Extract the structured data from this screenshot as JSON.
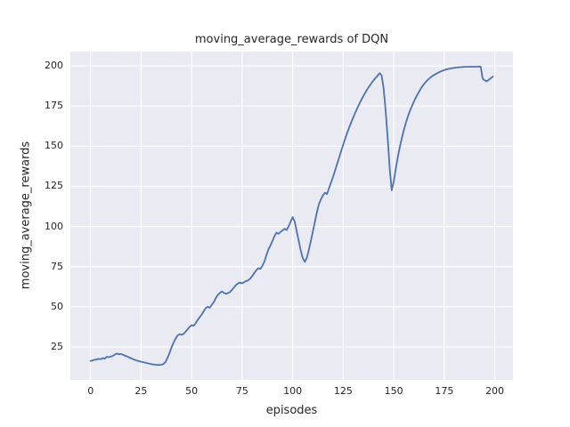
{
  "chart_data": {
    "type": "line",
    "title": "moving_average_rewards of DQN",
    "xlabel": "episodes",
    "ylabel": "moving_average_rewards",
    "x_ticks": [
      0,
      25,
      50,
      75,
      100,
      125,
      150,
      175,
      200
    ],
    "y_ticks": [
      25,
      50,
      75,
      100,
      125,
      150,
      175,
      200
    ],
    "xlim": [
      -10,
      209
    ],
    "ylim": [
      4.5,
      208.9
    ],
    "grid": true,
    "legend_position": "none",
    "colors": {
      "line": "#4C72B0",
      "axes_background": "#EAEAF2",
      "grid": "#FFFFFF",
      "figure_background": "#FFFFFF",
      "text": "#262626"
    },
    "series": [
      {
        "name": "moving_average_rewards",
        "points": [
          [
            0,
            16.3
          ],
          [
            1,
            16.6
          ],
          [
            2,
            17.0
          ],
          [
            3,
            17.2
          ],
          [
            4,
            17.6
          ],
          [
            5,
            17.4
          ],
          [
            6,
            18.0
          ],
          [
            7,
            17.7
          ],
          [
            8,
            18.9
          ],
          [
            9,
            18.6
          ],
          [
            10,
            19.0
          ],
          [
            11,
            19.4
          ],
          [
            12,
            20.3
          ],
          [
            13,
            20.9
          ],
          [
            14,
            20.4
          ],
          [
            15,
            20.7
          ],
          [
            16,
            20.1
          ],
          [
            17,
            19.6
          ],
          [
            18,
            19.1
          ],
          [
            19,
            18.5
          ],
          [
            20,
            18.0
          ],
          [
            21,
            17.4
          ],
          [
            22,
            16.9
          ],
          [
            23,
            16.5
          ],
          [
            24,
            16.1
          ],
          [
            25,
            15.8
          ],
          [
            26,
            15.5
          ],
          [
            27,
            15.2
          ],
          [
            28,
            14.9
          ],
          [
            29,
            14.6
          ],
          [
            30,
            14.3
          ],
          [
            31,
            14.1
          ],
          [
            32,
            13.9
          ],
          [
            33,
            13.8
          ],
          [
            34,
            13.8
          ],
          [
            35,
            13.9
          ],
          [
            36,
            14.3
          ],
          [
            37,
            15.5
          ],
          [
            38,
            18.0
          ],
          [
            39,
            21.0
          ],
          [
            40,
            24.5
          ],
          [
            41,
            27.5
          ],
          [
            42,
            30.0
          ],
          [
            43,
            32.0
          ],
          [
            44,
            33.0
          ],
          [
            45,
            32.5
          ],
          [
            46,
            33.2
          ],
          [
            47,
            34.5
          ],
          [
            48,
            36.0
          ],
          [
            49,
            37.5
          ],
          [
            50,
            38.5
          ],
          [
            51,
            38.2
          ],
          [
            52,
            39.8
          ],
          [
            53,
            41.8
          ],
          [
            54,
            43.5
          ],
          [
            55,
            45.2
          ],
          [
            56,
            47.2
          ],
          [
            57,
            49.3
          ],
          [
            58,
            50.0
          ],
          [
            59,
            49.4
          ],
          [
            60,
            51.3
          ],
          [
            61,
            53.0
          ],
          [
            62,
            55.5
          ],
          [
            63,
            57.5
          ],
          [
            64,
            58.6
          ],
          [
            65,
            59.6
          ],
          [
            66,
            58.6
          ],
          [
            67,
            58.1
          ],
          [
            68,
            58.5
          ],
          [
            69,
            59.2
          ],
          [
            70,
            60.6
          ],
          [
            71,
            62.1
          ],
          [
            72,
            63.6
          ],
          [
            73,
            64.6
          ],
          [
            74,
            65.1
          ],
          [
            75,
            64.6
          ],
          [
            76,
            65.4
          ],
          [
            77,
            66.0
          ],
          [
            78,
            66.5
          ],
          [
            79,
            67.6
          ],
          [
            80,
            69.2
          ],
          [
            81,
            71.0
          ],
          [
            82,
            72.8
          ],
          [
            83,
            74.0
          ],
          [
            84,
            73.6
          ],
          [
            85,
            75.5
          ],
          [
            86,
            78.2
          ],
          [
            87,
            82.0
          ],
          [
            88,
            85.8
          ],
          [
            89,
            88.2
          ],
          [
            90,
            91.0
          ],
          [
            91,
            94.0
          ],
          [
            92,
            96.2
          ],
          [
            93,
            95.4
          ],
          [
            94,
            96.6
          ],
          [
            95,
            97.6
          ],
          [
            96,
            98.6
          ],
          [
            97,
            97.8
          ],
          [
            98,
            100.2
          ],
          [
            99,
            103.0
          ],
          [
            100,
            105.8
          ],
          [
            101,
            103.0
          ],
          [
            102,
            97.0
          ],
          [
            103,
            91.0
          ],
          [
            104,
            85.0
          ],
          [
            105,
            80.2
          ],
          [
            106,
            78.0
          ],
          [
            107,
            80.5
          ],
          [
            108,
            85.5
          ],
          [
            109,
            91.0
          ],
          [
            110,
            97.0
          ],
          [
            111,
            103.0
          ],
          [
            112,
            109.0
          ],
          [
            113,
            114.0
          ],
          [
            114,
            117.0
          ],
          [
            115,
            119.5
          ],
          [
            116,
            121.0
          ],
          [
            117,
            120.2
          ],
          [
            118,
            124.0
          ],
          [
            119,
            127.5
          ],
          [
            120,
            131.0
          ],
          [
            121,
            135.0
          ],
          [
            122,
            139.0
          ],
          [
            123,
            143.0
          ],
          [
            124,
            147.0
          ],
          [
            125,
            151.0
          ],
          [
            126,
            154.8
          ],
          [
            127,
            158.4
          ],
          [
            128,
            161.8
          ],
          [
            129,
            165.0
          ],
          [
            130,
            168.0
          ],
          [
            131,
            171.0
          ],
          [
            132,
            173.8
          ],
          [
            133,
            176.4
          ],
          [
            134,
            178.9
          ],
          [
            135,
            181.3
          ],
          [
            136,
            183.5
          ],
          [
            137,
            185.6
          ],
          [
            138,
            187.5
          ],
          [
            139,
            189.3
          ],
          [
            140,
            191.0
          ],
          [
            141,
            192.5
          ],
          [
            142,
            193.9
          ],
          [
            143,
            195.5
          ],
          [
            144,
            194.0
          ],
          [
            145,
            186.0
          ],
          [
            146,
            172.0
          ],
          [
            147,
            155.0
          ],
          [
            148,
            136.0
          ],
          [
            149,
            122.5
          ],
          [
            150,
            128.0
          ],
          [
            151,
            136.0
          ],
          [
            152,
            143.0
          ],
          [
            153,
            149.5
          ],
          [
            154,
            155.0
          ],
          [
            155,
            160.0
          ],
          [
            156,
            164.5
          ],
          [
            157,
            168.5
          ],
          [
            158,
            172.0
          ],
          [
            159,
            175.0
          ],
          [
            160,
            177.8
          ],
          [
            161,
            180.4
          ],
          [
            162,
            182.8
          ],
          [
            163,
            185.0
          ],
          [
            164,
            187.0
          ],
          [
            165,
            188.7
          ],
          [
            166,
            190.2
          ],
          [
            167,
            191.5
          ],
          [
            168,
            192.6
          ],
          [
            169,
            193.6
          ],
          [
            170,
            194.4
          ],
          [
            171,
            195.1
          ],
          [
            172,
            195.8
          ],
          [
            173,
            196.4
          ],
          [
            174,
            196.9
          ],
          [
            175,
            197.4
          ],
          [
            176,
            197.8
          ],
          [
            177,
            198.1
          ],
          [
            178,
            198.4
          ],
          [
            179,
            198.6
          ],
          [
            180,
            198.8
          ],
          [
            181,
            199.0
          ],
          [
            182,
            199.1
          ],
          [
            183,
            199.2
          ],
          [
            184,
            199.3
          ],
          [
            185,
            199.4
          ],
          [
            186,
            199.4
          ],
          [
            187,
            199.5
          ],
          [
            188,
            199.5
          ],
          [
            189,
            199.5
          ],
          [
            190,
            199.5
          ],
          [
            191,
            199.5
          ],
          [
            192,
            199.6
          ],
          [
            193,
            199.6
          ],
          [
            194,
            192.0
          ],
          [
            195,
            191.0
          ],
          [
            196,
            190.4
          ],
          [
            197,
            191.3
          ],
          [
            198,
            192.3
          ],
          [
            199,
            193.3
          ]
        ]
      }
    ]
  }
}
